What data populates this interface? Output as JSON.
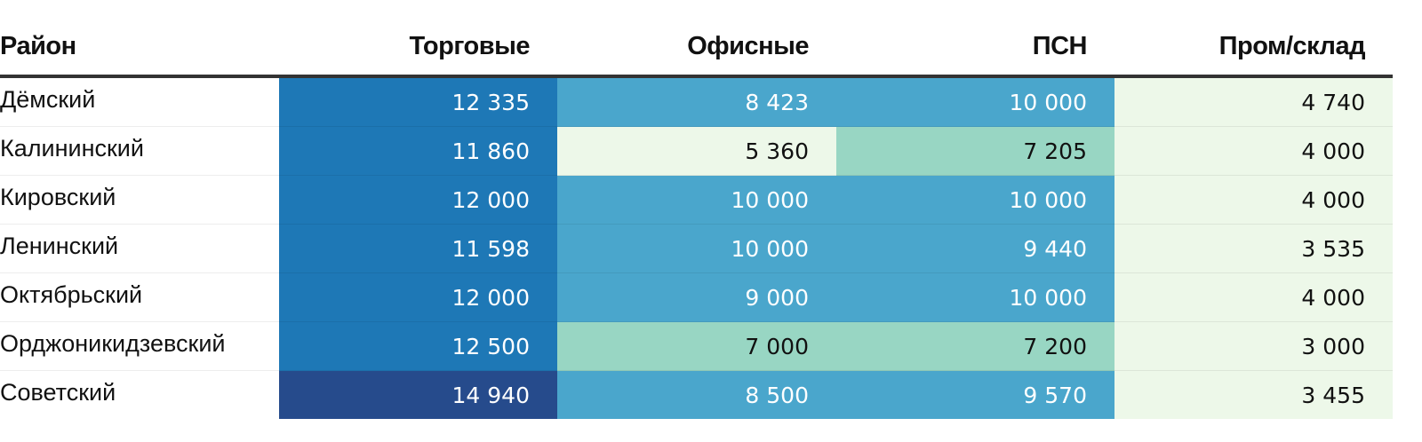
{
  "chart_data": {
    "type": "table",
    "columns": [
      "Район",
      "Торговые",
      "Офисные",
      "ПСН",
      "Пром/склад"
    ],
    "rows": [
      {
        "name": "Дёмский",
        "values": [
          "12 335",
          "8 423",
          "10 000",
          "4 740"
        ]
      },
      {
        "name": "Калининский",
        "values": [
          "11 860",
          "5 360",
          "7 205",
          "4 000"
        ]
      },
      {
        "name": "Кировский",
        "values": [
          "12 000",
          "10 000",
          "10 000",
          "4 000"
        ]
      },
      {
        "name": "Ленинский",
        "values": [
          "11 598",
          "10 000",
          "9 440",
          "3 535"
        ]
      },
      {
        "name": "Октябрьский",
        "values": [
          "12 000",
          "9 000",
          "10 000",
          "4 000"
        ]
      },
      {
        "name": "Орджоникидзевский",
        "values": [
          "12 500",
          "7 000",
          "7 200",
          "3 000"
        ]
      },
      {
        "name": "Советский",
        "values": [
          "14 940",
          "8 500",
          "9 570",
          "3 455"
        ]
      }
    ],
    "color_scale": [
      {
        "max": 6000,
        "bg": "#edf8e9",
        "fg": "#111111"
      },
      {
        "max": 8000,
        "bg": "#98d6c3",
        "fg": "#111111"
      },
      {
        "max": 11000,
        "bg": "#4aa6cc",
        "fg": "#ffffff"
      },
      {
        "max": 13000,
        "bg": "#1e78b6",
        "fg": "#ffffff"
      },
      {
        "max": 1000000,
        "bg": "#264b8c",
        "fg": "#ffffff"
      }
    ]
  }
}
